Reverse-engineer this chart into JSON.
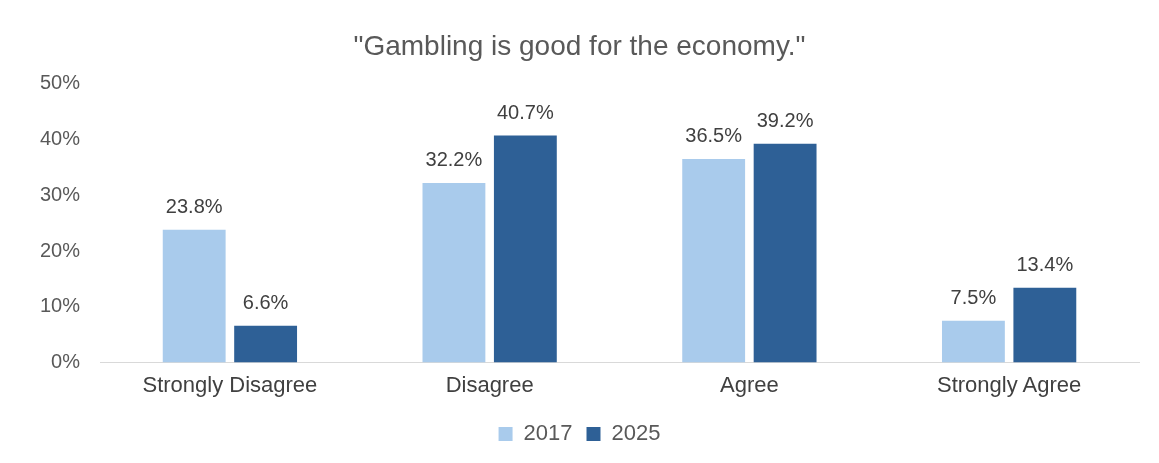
{
  "chart_data": {
    "type": "bar",
    "title": "\"Gambling is good for the economy.\"",
    "categories": [
      "Strongly Disagree",
      "Disagree",
      "Agree",
      "Strongly Agree"
    ],
    "series": [
      {
        "name": "2017",
        "color": "#a9cbec",
        "values": [
          23.8,
          32.2,
          36.5,
          7.5
        ],
        "value_labels": [
          "23.8%",
          "32.2%",
          "36.5%",
          "7.5%"
        ]
      },
      {
        "name": "2025",
        "color": "#2e6096",
        "values": [
          6.6,
          40.7,
          39.2,
          13.4
        ],
        "value_labels": [
          "6.6%",
          "40.7%",
          "39.2%",
          "13.4%"
        ]
      }
    ],
    "ylim": [
      0,
      50
    ],
    "yticks": [
      {
        "value": 0,
        "label": "0%"
      },
      {
        "value": 10,
        "label": "10%"
      },
      {
        "value": 20,
        "label": "20%"
      },
      {
        "value": 30,
        "label": "30%"
      },
      {
        "value": 40,
        "label": "40%"
      },
      {
        "value": 50,
        "label": "50%"
      }
    ],
    "grid": false,
    "legend": "bottom"
  }
}
